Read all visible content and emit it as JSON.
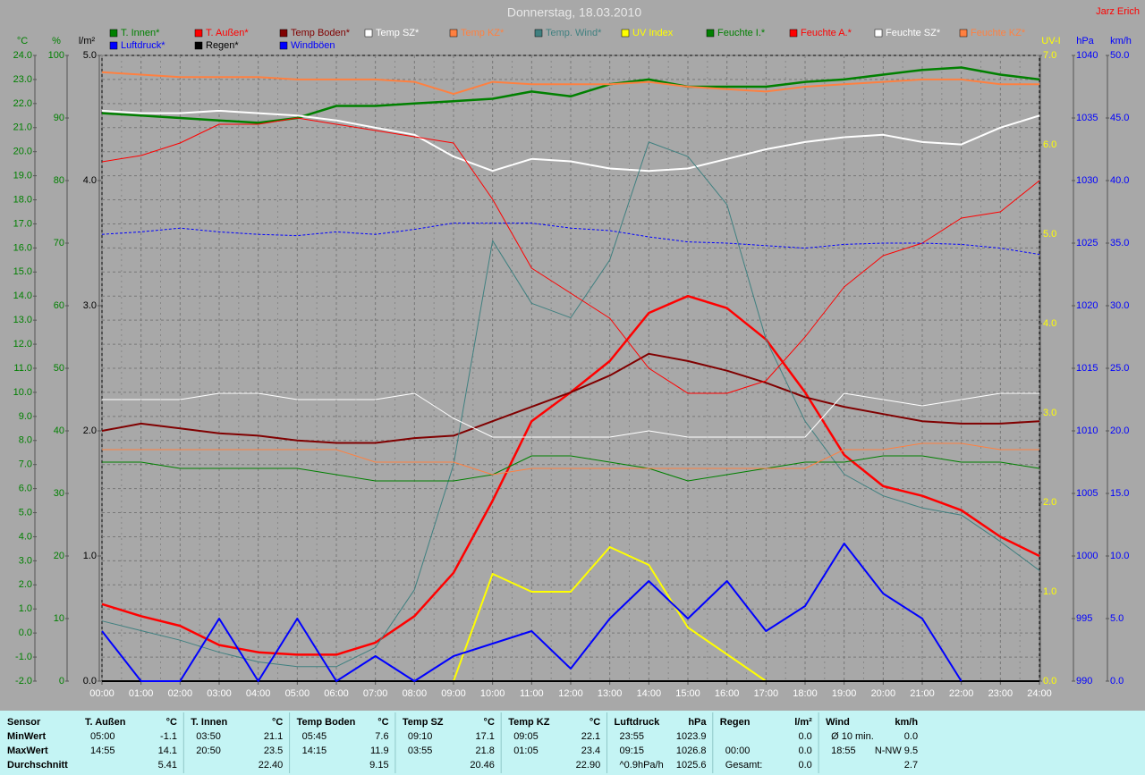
{
  "chart_data": {
    "type": "line",
    "title": "Donnerstag, 18.03.2010",
    "author": "Jarz Erich",
    "grid": true,
    "xlim": [
      0,
      24
    ],
    "xticks": [
      {
        "value": 0,
        "label": "00:00"
      },
      {
        "value": 1,
        "label": "01:00"
      },
      {
        "value": 2,
        "label": "02:00"
      },
      {
        "value": 3,
        "label": "03:00"
      },
      {
        "value": 4,
        "label": "04:00"
      },
      {
        "value": 5,
        "label": "05:00"
      },
      {
        "value": 6,
        "label": "06:00"
      },
      {
        "value": 7,
        "label": "07:00"
      },
      {
        "value": 8,
        "label": "08:00"
      },
      {
        "value": 9,
        "label": "09:00"
      },
      {
        "value": 10,
        "label": "10:00"
      },
      {
        "value": 11,
        "label": "11:00"
      },
      {
        "value": 12,
        "label": "12:00"
      },
      {
        "value": 13,
        "label": "13:00"
      },
      {
        "value": 14,
        "label": "14:00"
      },
      {
        "value": 15,
        "label": "15:00"
      },
      {
        "value": 16,
        "label": "16:00"
      },
      {
        "value": 17,
        "label": "17:00"
      },
      {
        "value": 18,
        "label": "18:00"
      },
      {
        "value": 19,
        "label": "19:00"
      },
      {
        "value": 20,
        "label": "20:00"
      },
      {
        "value": 21,
        "label": "21:00"
      },
      {
        "value": 22,
        "label": "22:00"
      },
      {
        "value": 23,
        "label": "23:00"
      },
      {
        "value": 24,
        "label": "24:00"
      }
    ],
    "axes": [
      {
        "label": "°C",
        "color": "#008000",
        "lim": [
          -2,
          24
        ],
        "ticks": [
          {
            "value": -2,
            "label": "-2.0"
          },
          {
            "value": -1,
            "label": "-1.0"
          },
          {
            "value": 0,
            "label": "0.0"
          },
          {
            "value": 1,
            "label": "1.0"
          },
          {
            "value": 2,
            "label": "2.0"
          },
          {
            "value": 3,
            "label": "3.0"
          },
          {
            "value": 4,
            "label": "4.0"
          },
          {
            "value": 5,
            "label": "5.0"
          },
          {
            "value": 6,
            "label": "6.0"
          },
          {
            "value": 7,
            "label": "7.0"
          },
          {
            "value": 8,
            "label": "8.0"
          },
          {
            "value": 9,
            "label": "9.0"
          },
          {
            "value": 10,
            "label": "10.0"
          },
          {
            "value": 11,
            "label": "11.0"
          },
          {
            "value": 12,
            "label": "12.0"
          },
          {
            "value": 13,
            "label": "13.0"
          },
          {
            "value": 14,
            "label": "14.0"
          },
          {
            "value": 15,
            "label": "15.0"
          },
          {
            "value": 16,
            "label": "16.0"
          },
          {
            "value": 17,
            "label": "17.0"
          },
          {
            "value": 18,
            "label": "18.0"
          },
          {
            "value": 19,
            "label": "19.0"
          },
          {
            "value": 20,
            "label": "20.0"
          },
          {
            "value": 21,
            "label": "21.0"
          },
          {
            "value": 22,
            "label": "22.0"
          },
          {
            "value": 23,
            "label": "23.0"
          },
          {
            "value": 24,
            "label": "24.0"
          }
        ]
      },
      {
        "label": "%",
        "color": "#008000",
        "lim": [
          0,
          100
        ],
        "ticks": [
          0,
          10,
          20,
          30,
          40,
          50,
          60,
          70,
          80,
          90,
          100
        ]
      },
      {
        "label": "l/m²",
        "color": "#000000",
        "lim": [
          0,
          5
        ],
        "ticks": [
          {
            "value": 0,
            "label": "0.0"
          },
          {
            "value": 1,
            "label": "1.0"
          },
          {
            "value": 2,
            "label": "2.0"
          },
          {
            "value": 3,
            "label": "3.0"
          },
          {
            "value": 4,
            "label": "4.0"
          },
          {
            "value": 5,
            "label": "5.0"
          }
        ]
      },
      {
        "label": "UV-I",
        "color": "#ffff00",
        "lim": [
          0,
          7
        ],
        "ticks": [
          {
            "value": 0,
            "label": "0.0"
          },
          {
            "value": 1,
            "label": "1.0"
          },
          {
            "value": 2,
            "label": "2.0"
          },
          {
            "value": 3,
            "label": "3.0"
          },
          {
            "value": 4,
            "label": "4.0"
          },
          {
            "value": 5,
            "label": "5.0"
          },
          {
            "value": 6,
            "label": "6.0"
          },
          {
            "value": 7,
            "label": "7.0"
          }
        ]
      },
      {
        "label": "hPa",
        "color": "#0000ff",
        "lim": [
          990,
          1040
        ],
        "ticks": [
          990,
          995,
          1000,
          1005,
          1010,
          1015,
          1020,
          1025,
          1030,
          1035,
          1040
        ]
      },
      {
        "label": "km/h",
        "color": "#0000ff",
        "lim": [
          0,
          50
        ],
        "ticks": [
          {
            "value": 0,
            "label": "0.0"
          },
          {
            "value": 5,
            "label": "5.0"
          },
          {
            "value": 10,
            "label": "10.0"
          },
          {
            "value": 15,
            "label": "15.0"
          },
          {
            "value": 20,
            "label": "20.0"
          },
          {
            "value": 25,
            "label": "25.0"
          },
          {
            "value": 30,
            "label": "30.0"
          },
          {
            "value": 35,
            "label": "35.0"
          },
          {
            "value": 40,
            "label": "40.0"
          },
          {
            "value": 45,
            "label": "45.0"
          },
          {
            "value": 50,
            "label": "50.0"
          }
        ]
      }
    ],
    "x": [
      0,
      1,
      2,
      3,
      4,
      5,
      6,
      7,
      8,
      9,
      10,
      11,
      12,
      13,
      14,
      15,
      16,
      17,
      18,
      19,
      20,
      21,
      22,
      23,
      24
    ],
    "series": [
      {
        "name": "T. Innen*",
        "color": "#008000",
        "axis": 0,
        "width": 2.5,
        "values": [
          21.6,
          21.5,
          21.4,
          21.3,
          21.2,
          21.4,
          21.9,
          21.9,
          22.0,
          22.1,
          22.2,
          22.5,
          22.3,
          22.8,
          23.0,
          22.7,
          22.7,
          22.7,
          22.9,
          23.0,
          23.2,
          23.4,
          23.5,
          23.2,
          23.0
        ]
      },
      {
        "name": "T. Außen*",
        "color": "#ff0000",
        "axis": 0,
        "width": 2.5,
        "values": [
          1.2,
          0.7,
          0.3,
          -0.5,
          -0.8,
          -0.9,
          -0.9,
          -0.4,
          0.7,
          2.5,
          5.5,
          8.8,
          10.0,
          11.3,
          13.3,
          14.0,
          13.5,
          12.2,
          10.0,
          7.4,
          6.1,
          5.7,
          5.1,
          4.0,
          3.2
        ]
      },
      {
        "name": "Temp Boden*",
        "color": "#800000",
        "axis": 0,
        "width": 2,
        "values": [
          8.4,
          8.7,
          8.5,
          8.3,
          8.2,
          8.0,
          7.9,
          7.9,
          8.1,
          8.2,
          8.8,
          9.4,
          10.0,
          10.7,
          11.6,
          11.3,
          10.9,
          10.4,
          9.8,
          9.4,
          9.1,
          8.8,
          8.7,
          8.7,
          8.8
        ]
      },
      {
        "name": "Temp SZ*",
        "color": "#ffffff",
        "axis": 0,
        "width": 2,
        "values": [
          21.7,
          21.6,
          21.6,
          21.7,
          21.6,
          21.5,
          21.3,
          21.0,
          20.7,
          19.8,
          19.2,
          19.7,
          19.6,
          19.3,
          19.2,
          19.3,
          19.7,
          20.1,
          20.4,
          20.6,
          20.7,
          20.4,
          20.3,
          21.0,
          21.5
        ]
      },
      {
        "name": "Temp KZ*",
        "color": "#ff8040",
        "axis": 0,
        "width": 2,
        "values": [
          23.3,
          23.2,
          23.1,
          23.1,
          23.1,
          23.0,
          23.0,
          23.0,
          22.9,
          22.4,
          22.9,
          22.8,
          22.8,
          22.8,
          22.9,
          22.7,
          22.6,
          22.5,
          22.7,
          22.8,
          22.9,
          23.0,
          23.0,
          22.8,
          22.8
        ]
      },
      {
        "name": "Temp. Wind*",
        "color": "#408080",
        "axis": 0,
        "width": 1,
        "values": [
          0.5,
          0.1,
          -0.3,
          -0.8,
          -1.2,
          -1.4,
          -1.4,
          -0.6,
          1.8,
          7.0,
          16.3,
          13.7,
          13.1,
          15.5,
          20.4,
          19.8,
          17.8,
          12.2,
          8.8,
          6.6,
          5.7,
          5.2,
          4.9,
          3.8,
          2.6
        ]
      },
      {
        "name": "UV Index",
        "color": "#ffff00",
        "axis": 3,
        "width": 2,
        "values": [
          0,
          0,
          0,
          0,
          0,
          0,
          0,
          0,
          0,
          0,
          1.2,
          1.0,
          1.0,
          1.5,
          1.3,
          0.6,
          0.3,
          0,
          0,
          0,
          0,
          0,
          0,
          0,
          0
        ]
      },
      {
        "name": "Feuchte I.*",
        "color": "#008000",
        "axis": 1,
        "width": 1,
        "values": [
          35,
          35,
          34,
          34,
          34,
          34,
          33,
          32,
          32,
          32,
          33,
          36,
          36,
          35,
          34,
          32,
          33,
          34,
          35,
          35,
          36,
          36,
          35,
          35,
          34
        ]
      },
      {
        "name": "Feuchte A.*",
        "color": "#ff0000",
        "axis": 1,
        "width": 1,
        "values": [
          83,
          84,
          86,
          89,
          89,
          90,
          89,
          88,
          87,
          86,
          77,
          66,
          62,
          58,
          50,
          46,
          46,
          48,
          55,
          63,
          68,
          70,
          74,
          75,
          80
        ]
      },
      {
        "name": "Feuchte SZ*",
        "color": "#ffffff",
        "axis": 1,
        "width": 1,
        "values": [
          45,
          45,
          45,
          46,
          46,
          45,
          45,
          45,
          46,
          42,
          39,
          39,
          39,
          39,
          40,
          39,
          39,
          39,
          39,
          46,
          45,
          44,
          45,
          46,
          46
        ]
      },
      {
        "name": "Feuchte KZ*",
        "color": "#ff8040",
        "axis": 1,
        "width": 1,
        "values": [
          37,
          37,
          37,
          37,
          37,
          37,
          37,
          35,
          35,
          35,
          33,
          34,
          34,
          34,
          34,
          34,
          34,
          34,
          34,
          37,
          37,
          38,
          38,
          37,
          37
        ]
      },
      {
        "name": "Luftdruck*",
        "color": "#0000ff",
        "axis": 4,
        "width": 1,
        "dashed": true,
        "values": [
          1025.7,
          1025.9,
          1026.2,
          1025.9,
          1025.7,
          1025.6,
          1025.9,
          1025.7,
          1026.1,
          1026.6,
          1026.6,
          1026.6,
          1026.2,
          1026.0,
          1025.5,
          1025.1,
          1025.0,
          1024.8,
          1024.6,
          1024.9,
          1025.0,
          1025.0,
          1024.9,
          1024.6,
          1024.1
        ]
      },
      {
        "name": "Regen*",
        "color": "#000000",
        "axis": 2,
        "width": 2,
        "values": [
          0,
          0,
          0,
          0,
          0,
          0,
          0,
          0,
          0,
          0,
          0,
          0,
          0,
          0,
          0,
          0,
          0,
          0,
          0,
          0,
          0,
          0,
          0,
          0,
          0
        ]
      },
      {
        "name": "Windböen",
        "color": "#0000ff",
        "axis": 5,
        "width": 2,
        "values": [
          4.0,
          0,
          0,
          5.0,
          0,
          5.0,
          0,
          2.0,
          0,
          2.0,
          3.0,
          4.0,
          1.0,
          5.0,
          8.0,
          5.0,
          8.0,
          4.0,
          6.0,
          11.0,
          7.0,
          5.0,
          0,
          null,
          null
        ]
      }
    ]
  },
  "table": {
    "corner": "Sensor",
    "row_labels": [
      "MinWert",
      "MaxWert",
      "Durchschnitt"
    ],
    "columns": [
      {
        "header": "T. Außen",
        "unit": "°C",
        "rows": [
          [
            "05:00",
            "-1.1"
          ],
          [
            "14:55",
            "14.1"
          ],
          [
            "5.41"
          ]
        ]
      },
      {
        "header": "T. Innen",
        "unit": "°C",
        "rows": [
          [
            "03:50",
            "21.1"
          ],
          [
            "20:50",
            "23.5"
          ],
          [
            "22.40"
          ]
        ]
      },
      {
        "header": "Temp Boden",
        "unit": "°C",
        "rows": [
          [
            "05:45",
            "7.6"
          ],
          [
            "14:15",
            "11.9"
          ],
          [
            "9.15"
          ]
        ]
      },
      {
        "header": "Temp SZ",
        "unit": "°C",
        "rows": [
          [
            "09:10",
            "17.1"
          ],
          [
            "03:55",
            "21.8"
          ],
          [
            "20.46"
          ]
        ]
      },
      {
        "header": "Temp KZ",
        "unit": "°C",
        "rows": [
          [
            "09:05",
            "22.1"
          ],
          [
            "01:05",
            "23.4"
          ],
          [
            "22.90"
          ]
        ]
      },
      {
        "header": "Luftdruck",
        "unit": "hPa",
        "rows": [
          [
            "23:55",
            "1023.9"
          ],
          [
            "09:15",
            "1026.8"
          ],
          [
            "^0.9hPa/h",
            "1025.6"
          ]
        ]
      },
      {
        "header": "Regen",
        "unit": "l/m²",
        "rows": [
          [
            "0.0"
          ],
          [
            "00:00",
            "0.0"
          ],
          [
            "Gesamt:",
            "0.0"
          ]
        ]
      },
      {
        "header": "Wind",
        "unit": "km/h",
        "rows": [
          [
            "Ø 10 min.",
            "0.0"
          ],
          [
            "18:55",
            "N-NW 9.5"
          ],
          [
            "2.7"
          ]
        ]
      }
    ]
  }
}
